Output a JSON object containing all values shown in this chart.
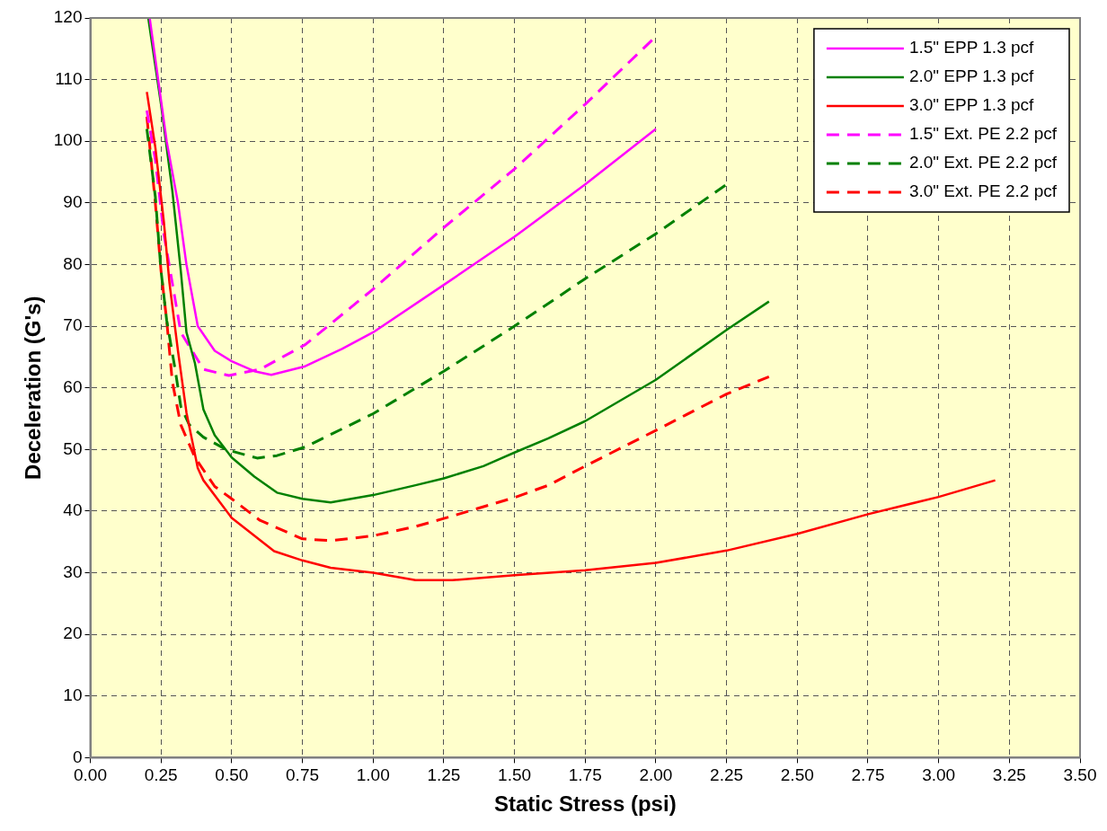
{
  "chart_data": {
    "type": "line",
    "xlabel": "Static Stress (psi)",
    "ylabel": "Deceleration (G's)",
    "xlim": [
      0,
      3.5
    ],
    "ylim": [
      0,
      120
    ],
    "xticks": [
      {
        "value": 0,
        "label": "0.00"
      },
      {
        "value": 0.25,
        "label": "0.25"
      },
      {
        "value": 0.5,
        "label": "0.50"
      },
      {
        "value": 0.75,
        "label": "0.75"
      },
      {
        "value": 1,
        "label": "1.00"
      },
      {
        "value": 1.25,
        "label": "1.25"
      },
      {
        "value": 1.5,
        "label": "1.50"
      },
      {
        "value": 1.75,
        "label": "1.75"
      },
      {
        "value": 2,
        "label": "2.00"
      },
      {
        "value": 2.25,
        "label": "2.25"
      },
      {
        "value": 2.5,
        "label": "2.50"
      },
      {
        "value": 2.75,
        "label": "2.75"
      },
      {
        "value": 3,
        "label": "3.00"
      },
      {
        "value": 3.25,
        "label": "3.25"
      },
      {
        "value": 3.5,
        "label": "3.50"
      }
    ],
    "yticks": [
      0,
      10,
      20,
      30,
      40,
      50,
      60,
      70,
      80,
      90,
      100,
      110,
      120
    ],
    "grid": true,
    "legend": "top right",
    "marker": "none",
    "series": [
      {
        "name": "1.5\" EPP 1.3 pcf",
        "color": "#ff00ff",
        "line_style": "solid",
        "x": [
          0.21,
          0.24,
          0.27,
          0.31,
          0.34,
          0.38,
          0.44,
          0.5,
          0.58,
          0.64,
          0.76,
          0.89,
          1.0,
          1.25,
          1.5,
          1.75,
          2.0
        ],
        "values": [
          120,
          110,
          100,
          90,
          80,
          70,
          66,
          64.3,
          62.7,
          62.1,
          63.5,
          66.3,
          69,
          76.7,
          84.5,
          93,
          102
        ]
      },
      {
        "name": "2.0\" EPP 1.3 pcf",
        "color": "#008000",
        "line_style": "solid",
        "x": [
          0.205,
          0.25,
          0.29,
          0.32,
          0.34,
          0.37,
          0.4,
          0.44,
          0.5,
          0.58,
          0.66,
          0.75,
          0.85,
          1.0,
          1.15,
          1.25,
          1.39,
          1.5,
          1.62,
          1.75,
          2.0,
          2.25,
          2.4
        ],
        "values": [
          120,
          106,
          92,
          79,
          69,
          64,
          56.5,
          52.3,
          48.7,
          45.6,
          43,
          42,
          41.4,
          42.6,
          44.2,
          45.3,
          47.3,
          49.5,
          51.8,
          54.6,
          61.3,
          69.4,
          74
        ]
      },
      {
        "name": "3.0\" EPP 1.3 pcf",
        "color": "#ff0000",
        "line_style": "solid",
        "x": [
          0.2,
          0.23,
          0.26,
          0.28,
          0.31,
          0.34,
          0.38,
          0.4,
          0.5,
          0.65,
          0.75,
          0.85,
          1.0,
          1.15,
          1.28,
          1.5,
          1.75,
          2.0,
          2.25,
          2.5,
          2.75,
          3.0,
          3.2
        ],
        "values": [
          108,
          99,
          87,
          77,
          66,
          56,
          47,
          45,
          38.9,
          33.5,
          32,
          30.8,
          30,
          28.8,
          28.8,
          29.6,
          30.4,
          31.6,
          33.6,
          36.3,
          39.5,
          42.3,
          45
        ]
      },
      {
        "name": "1.5\" Ext. PE 2.2 pcf",
        "color": "#ff00ff",
        "line_style": "dashed",
        "x": [
          0.2,
          0.23,
          0.26,
          0.29,
          0.32,
          0.36,
          0.4,
          0.49,
          0.6,
          0.76,
          1.0,
          1.25,
          1.5,
          1.75,
          2.0
        ],
        "values": [
          105,
          97,
          85,
          77,
          69,
          66,
          63,
          62,
          63,
          67,
          76,
          86,
          95.5,
          106,
          117
        ]
      },
      {
        "name": "2.0\" Ext. PE 2.2 pcf",
        "color": "#008000",
        "line_style": "dashed",
        "x": [
          0.2,
          0.23,
          0.25,
          0.27,
          0.3,
          0.32,
          0.35,
          0.4,
          0.48,
          0.59,
          0.66,
          0.76,
          1.0,
          1.25,
          1.5,
          1.75,
          2.0,
          2.25
        ],
        "values": [
          102,
          91,
          79,
          71,
          63,
          57,
          54,
          52,
          50,
          48.6,
          49,
          50.4,
          55.8,
          62.7,
          70,
          77.7,
          85,
          93
        ]
      },
      {
        "name": "3.0\" Ext. PE 2.2 pcf",
        "color": "#ff0000",
        "line_style": "dashed",
        "x": [
          0.2,
          0.23,
          0.25,
          0.27,
          0.29,
          0.32,
          0.37,
          0.44,
          0.5,
          0.6,
          0.75,
          0.85,
          1.0,
          1.15,
          1.25,
          1.5,
          1.62,
          1.75,
          2.0,
          2.25,
          2.4
        ],
        "values": [
          104,
          90,
          79,
          71,
          61,
          54,
          48.7,
          44,
          42,
          38.5,
          35.5,
          35.2,
          36,
          37.5,
          38.8,
          42.2,
          44.2,
          47.3,
          53.1,
          59,
          61.8
        ]
      }
    ]
  }
}
